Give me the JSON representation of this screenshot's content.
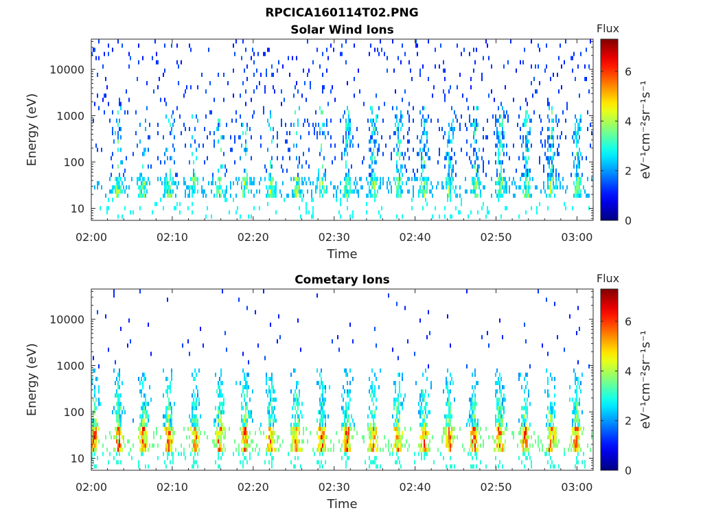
{
  "figure": {
    "title": "RPCICA160114T02.PNG"
  },
  "colormap": "jet",
  "chart_data": [
    {
      "type": "heatmap",
      "title": "Solar Wind Ions",
      "xlabel": "Time",
      "ylabel": "Energy (eV)",
      "x_ticks": [
        "02:00",
        "02:10",
        "02:20",
        "02:30",
        "02:40",
        "02:50",
        "03:00"
      ],
      "x_range_minutes": [
        0,
        62
      ],
      "y_scale": "log",
      "y_ticks": [
        {
          "value": 10,
          "label": "10"
        },
        {
          "value": 100,
          "label": "100"
        },
        {
          "value": 1000,
          "label": "1000"
        },
        {
          "value": 10000,
          "label": "10000"
        }
      ],
      "y_range": [
        5.5,
        45000
      ],
      "colorbar": {
        "title": "Flux",
        "label": "eV⁻¹cm⁻²sr⁻¹s⁻¹",
        "range": [
          0,
          7.3
        ],
        "ticks": [
          {
            "value": 0,
            "label": "0"
          },
          {
            "value": 2,
            "label": "2"
          },
          {
            "value": 4,
            "label": "4"
          },
          {
            "value": 6,
            "label": "6"
          }
        ]
      },
      "bursts_minutes": [
        3.2,
        6.3,
        9.5,
        12.6,
        15.8,
        18.9,
        22.1,
        25.3,
        28.4,
        31.6,
        34.8,
        37.9,
        41.0,
        44.2,
        47.4,
        50.5,
        53.7,
        56.8,
        60.0
      ],
      "bursts_description": "Recurring low-energy (~20-45 eV) bands; upper part dominated by sparse scattered counts (flux ~1-3) with periodic columns extending to ~1000 eV after 02:30"
    },
    {
      "type": "heatmap",
      "title": "Cometary Ions",
      "xlabel": "Time",
      "ylabel": "Energy (eV)",
      "x_ticks": [
        "02:00",
        "02:10",
        "02:20",
        "02:30",
        "02:40",
        "02:50",
        "03:00"
      ],
      "x_range_minutes": [
        0,
        62
      ],
      "y_scale": "log",
      "y_ticks": [
        {
          "value": 10,
          "label": "10"
        },
        {
          "value": 100,
          "label": "100"
        },
        {
          "value": 1000,
          "label": "1000"
        },
        {
          "value": 10000,
          "label": "10000"
        }
      ],
      "y_range": [
        5.5,
        45000
      ],
      "colorbar": {
        "title": "Flux",
        "label": "eV⁻¹cm⁻²sr⁻¹s⁻¹",
        "range": [
          0,
          7.3
        ],
        "ticks": [
          {
            "value": 0,
            "label": "0"
          },
          {
            "value": 2,
            "label": "2"
          },
          {
            "value": 4,
            "label": "4"
          },
          {
            "value": 6,
            "label": "6"
          }
        ]
      },
      "bursts_minutes": [
        0.3,
        3.3,
        6.4,
        9.5,
        12.7,
        15.8,
        19.0,
        22.1,
        25.3,
        28.4,
        31.5,
        34.7,
        37.8,
        41.0,
        44.1,
        47.2,
        50.4,
        53.5,
        56.7,
        59.8
      ],
      "bursts_description": "Periodic intense bursts centered ~15-45 eV (flux up to ~6.5) with tails extending up to ~500-1000 eV, sparse counts above"
    }
  ]
}
